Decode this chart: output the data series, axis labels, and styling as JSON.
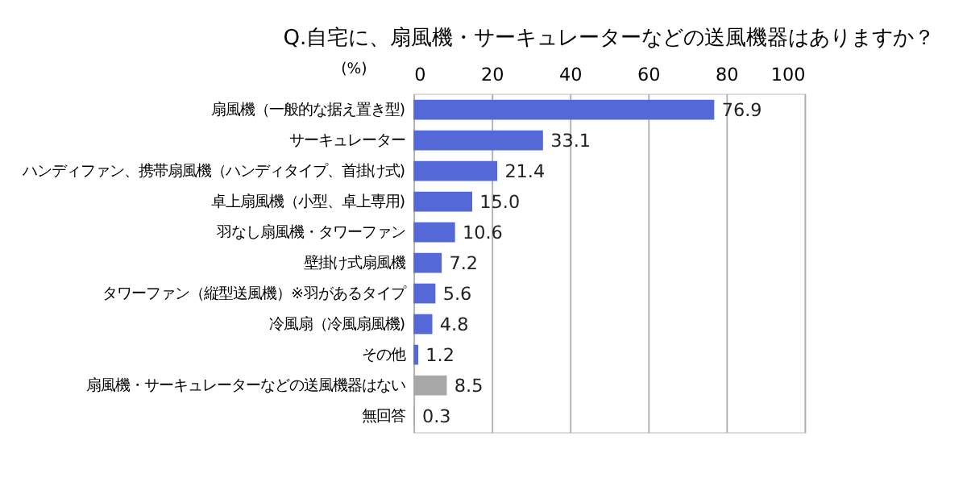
{
  "chart_data": {
    "type": "bar",
    "orientation": "horizontal",
    "title": "Q.自宅に、扇風機・サーキュレーターなどの送風機器はありますか？",
    "xlabel": "(%)",
    "categories": [
      "扇風機（一般的な据え置き型)",
      "サーキュレーター",
      "ハンディファン、携帯扇風機（ハンディタイプ、首掛け式)",
      "卓上扇風機（小型、卓上専用)",
      "羽なし扇風機・タワーファン",
      "壁掛け式扇風機",
      "タワーファン（縦型送風機）※羽があるタイプ",
      "冷風扇（冷風扇風機)",
      "その他",
      "扇風機・サーキュレーターなどの送風機器はない",
      "無回答"
    ],
    "values": [
      76.9,
      33.1,
      21.4,
      15.0,
      10.6,
      7.2,
      5.6,
      4.8,
      1.2,
      8.5,
      0.3
    ],
    "colors": [
      "#5468d8",
      "#5468d8",
      "#5468d8",
      "#5468d8",
      "#5468d8",
      "#5468d8",
      "#5468d8",
      "#5468d8",
      "#5468d8",
      "#a8a8a8",
      "#a8a8a8"
    ],
    "value_labels": [
      "76.9",
      "33.1",
      "21.4",
      "15.0",
      "10.6",
      "7.2",
      "5.6",
      "4.8",
      "1.2",
      "8.5",
      "0.3"
    ],
    "xlim": [
      0,
      100
    ],
    "xticks": [
      0,
      20,
      40,
      60,
      80,
      100
    ],
    "grid": true
  }
}
